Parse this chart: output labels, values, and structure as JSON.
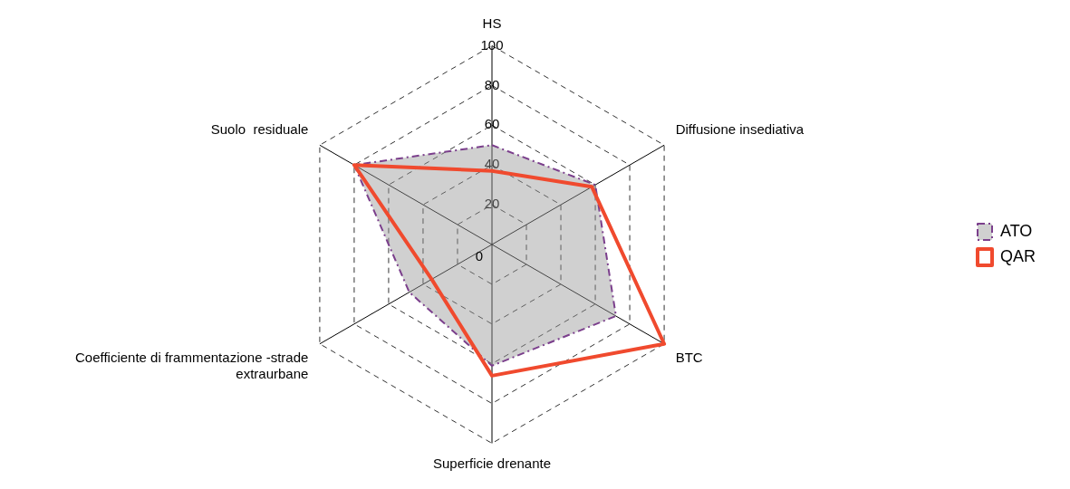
{
  "chart_data": {
    "type": "radar",
    "categories": [
      "HS",
      "Diffusione insediativa",
      "BTC",
      "Superficie drenante",
      "Coefficiente di frammentazione -strade extraurbane",
      "Suolo  residuale"
    ],
    "series": [
      {
        "name": "ATO",
        "color": "#7b3f8c",
        "line_style": "dashed",
        "values": [
          50,
          60,
          72,
          61,
          48,
          80
        ]
      },
      {
        "name": "QAR",
        "color": "#f04a2e",
        "line_style": "solid",
        "values": [
          37,
          58,
          100,
          66,
          35,
          80
        ]
      }
    ],
    "ylim": [
      0,
      100
    ],
    "yticks": [
      0,
      20,
      40,
      60,
      80,
      100
    ],
    "grid": true,
    "legend": "right",
    "marker": "none"
  }
}
